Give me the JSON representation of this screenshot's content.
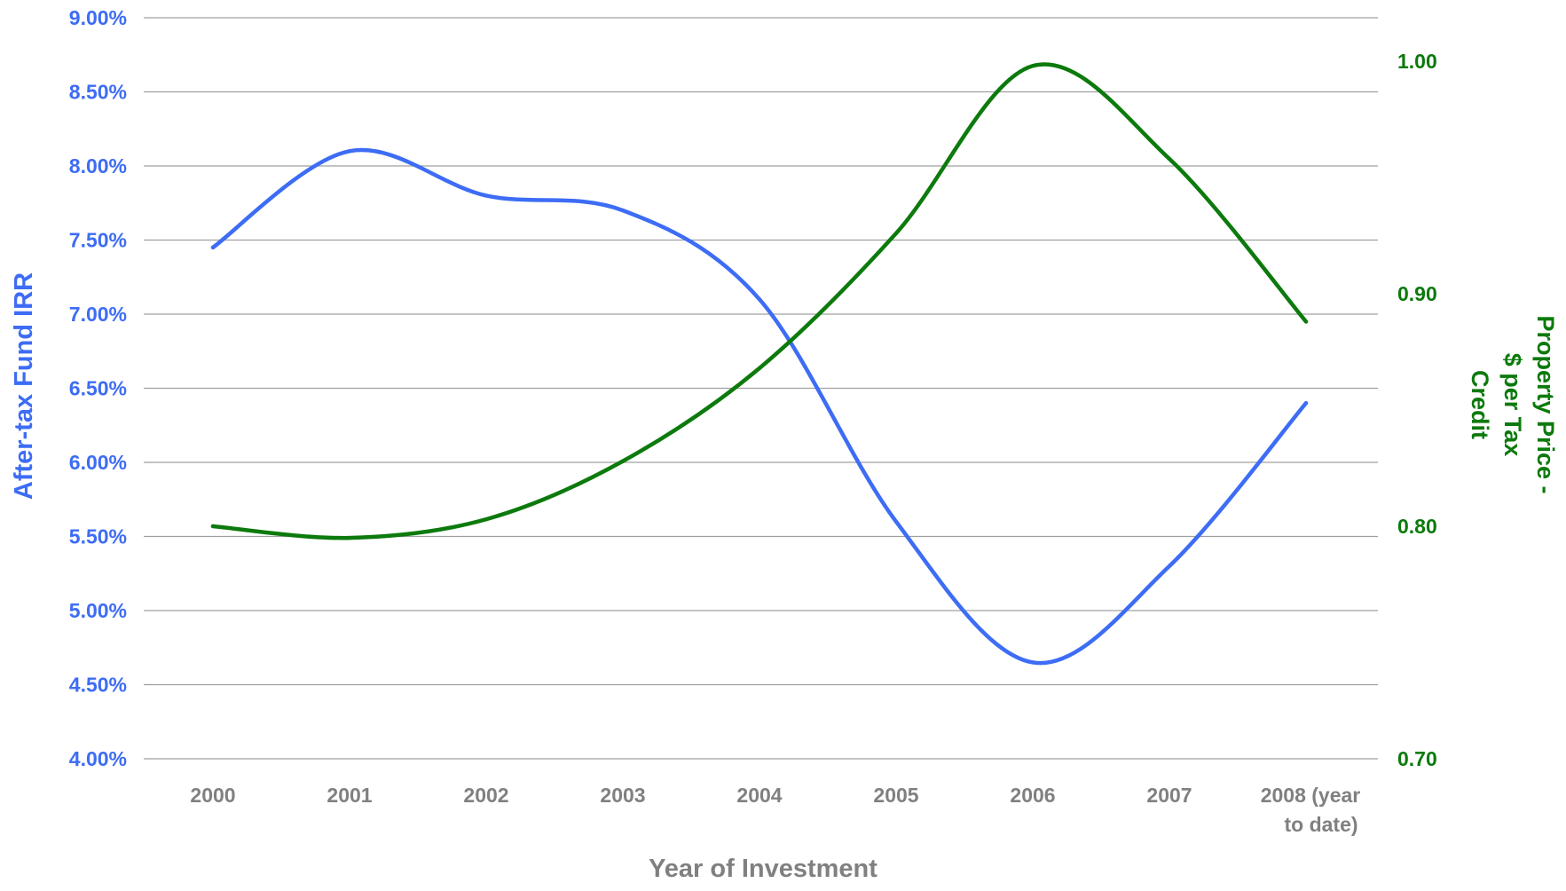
{
  "chart_data": {
    "type": "line",
    "title": "",
    "xlabel": "Year of Investment",
    "ylabel_left": "After-tax Fund IRR",
    "ylabel_right_lines": [
      "Property Price -",
      "$ per Tax",
      "Credit"
    ],
    "categories": [
      "2000",
      "2001",
      "2002",
      "2003",
      "2004",
      "2005",
      "2006",
      "2007",
      "2008 (year to date)"
    ],
    "category_label_lines": [
      [
        "2000"
      ],
      [
        "2001"
      ],
      [
        "2002"
      ],
      [
        "2003"
      ],
      [
        "2004"
      ],
      [
        "2005"
      ],
      [
        "2006"
      ],
      [
        "2007"
      ],
      [
        "2008 (year",
        "to date)"
      ]
    ],
    "left_axis": {
      "ylim": [
        4.0,
        9.0
      ],
      "ticks": [
        "4.00%",
        "4.50%",
        "5.00%",
        "5.50%",
        "6.00%",
        "6.50%",
        "7.00%",
        "7.50%",
        "8.00%",
        "8.50%",
        "9.00%"
      ],
      "tick_values": [
        4.0,
        4.5,
        5.0,
        5.5,
        6.0,
        6.5,
        7.0,
        7.5,
        8.0,
        8.5,
        9.0
      ],
      "color": "#3d6cf5"
    },
    "right_axis": {
      "ylim": [
        0.7,
        1.02
      ],
      "ticks": [
        "0.70",
        "0.80",
        "0.90",
        "1.00"
      ],
      "tick_values": [
        0.7,
        0.8,
        0.9,
        1.0
      ],
      "color": "#0c7a0c"
    },
    "series": [
      {
        "axis": "left",
        "color": "#3d6cf5",
        "values": [
          7.45,
          8.1,
          7.8,
          7.7,
          7.1,
          5.6,
          4.65,
          5.3,
          6.4
        ]
      },
      {
        "axis": "right",
        "color": "#0c7a0c",
        "values": [
          0.8,
          0.795,
          0.803,
          0.828,
          0.868,
          0.926,
          0.998,
          0.958,
          0.888
        ]
      }
    ],
    "grid": true,
    "legend": "none"
  }
}
